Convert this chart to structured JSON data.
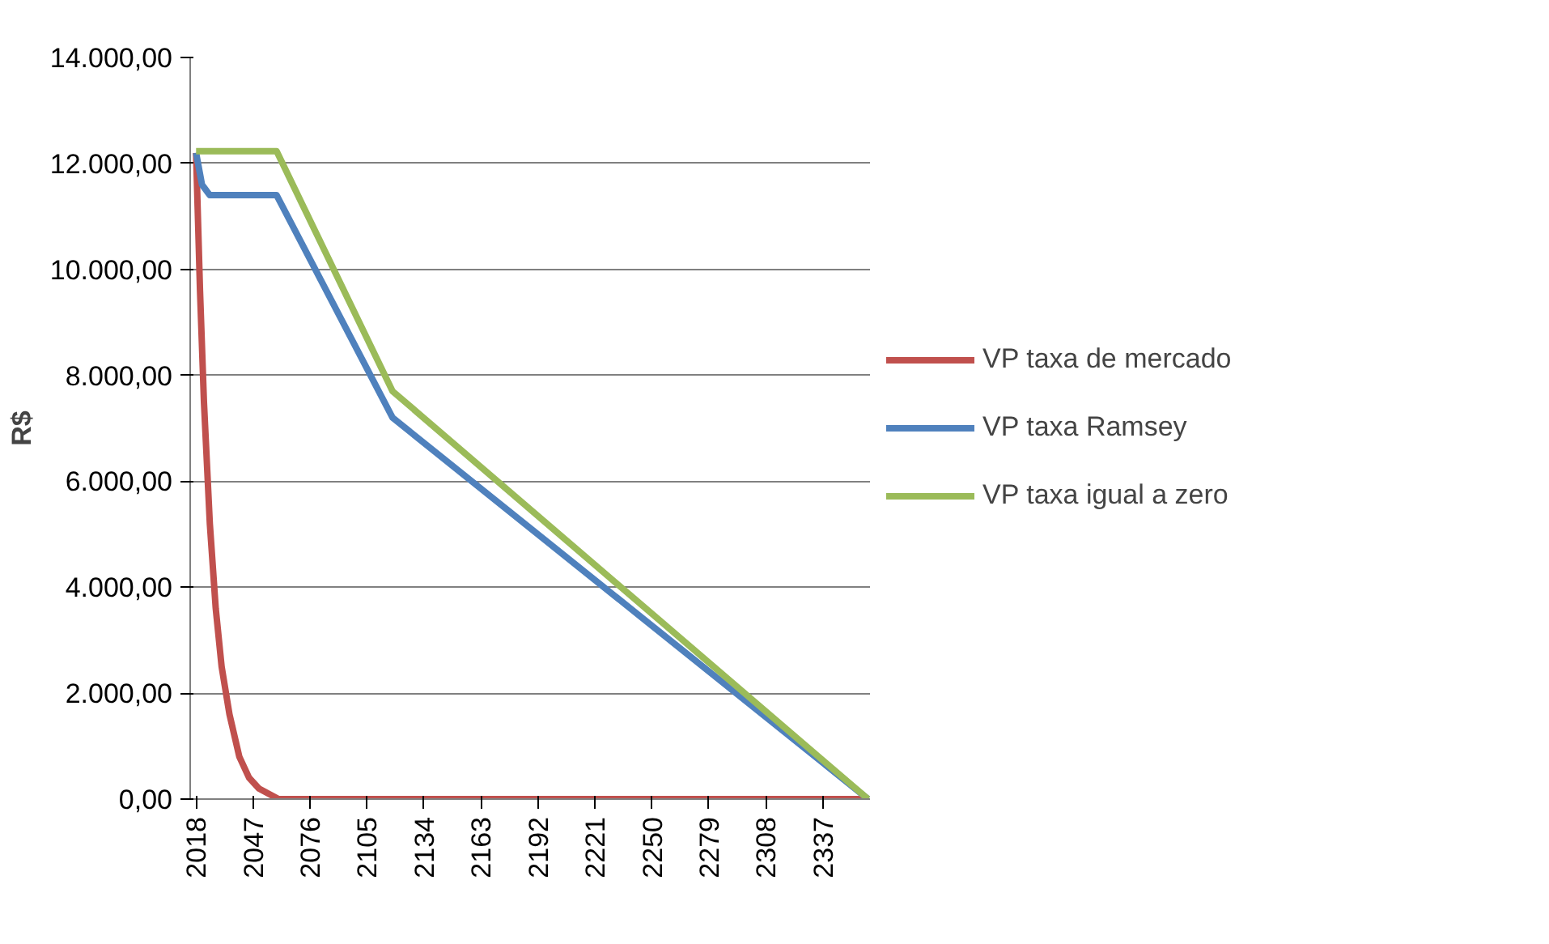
{
  "chart_data": {
    "type": "line",
    "ylabel": "R$",
    "xlim": [
      2015,
      2361
    ],
    "ylim": [
      0,
      14000
    ],
    "xticks": [
      2018,
      2047,
      2076,
      2105,
      2134,
      2163,
      2192,
      2221,
      2250,
      2279,
      2308,
      2337
    ],
    "yticks": [
      {
        "value": 0,
        "label": "0,00"
      },
      {
        "value": 2000,
        "label": "2.000,00"
      },
      {
        "value": 4000,
        "label": "4.000,00"
      },
      {
        "value": 6000,
        "label": "6.000,00"
      },
      {
        "value": 8000,
        "label": "8.000,00"
      },
      {
        "value": 10000,
        "label": "10.000,00"
      },
      {
        "value": 12000,
        "label": "12.000,00"
      },
      {
        "value": 14000,
        "label": "14.000,00"
      }
    ],
    "grid": "y",
    "legend": "right",
    "marker": "none",
    "line_style": "solid",
    "series": [
      {
        "name": "VP taxa de mercado",
        "color": "#c0504d",
        "x": [
          2018,
          2020,
          2022,
          2025,
          2028,
          2031,
          2035,
          2040,
          2045,
          2050,
          2060,
          2075,
          2100,
          2360
        ],
        "values": [
          12200,
          9600,
          7500,
          5200,
          3600,
          2500,
          1600,
          800,
          400,
          200,
          0,
          0,
          0,
          0
        ]
      },
      {
        "name": "VP taxa Ramsey",
        "color": "#4f81bd",
        "x": [
          2018,
          2021,
          2025,
          2059,
          2118,
          2360
        ],
        "values": [
          12200,
          11600,
          11400,
          11400,
          7200,
          0
        ]
      },
      {
        "name": "VP taxa igual a zero",
        "color": "#9bbb59",
        "x": [
          2018,
          2059,
          2118,
          2360
        ],
        "values": [
          12230,
          12230,
          7700,
          0
        ]
      }
    ]
  }
}
